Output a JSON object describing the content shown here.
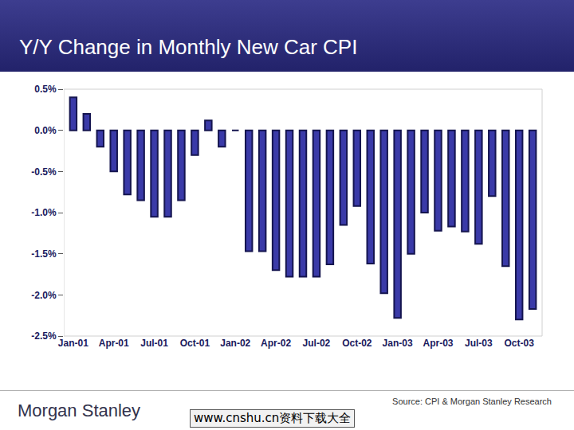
{
  "chart_data": {
    "type": "bar",
    "title": "Y/Y Change in Monthly New Car CPI",
    "categories": [
      "Jan-01",
      null,
      null,
      "Apr-01",
      null,
      null,
      "Jul-01",
      null,
      null,
      "Oct-01",
      null,
      null,
      "Jan-02",
      null,
      null,
      "Apr-02",
      null,
      null,
      "Jul-02",
      null,
      null,
      "Oct-02",
      null,
      null,
      "Jan-03",
      null,
      null,
      "Apr-03",
      null,
      null,
      "Jul-03",
      null,
      null,
      "Oct-03",
      null
    ],
    "values": [
      0.4,
      0.2,
      -0.2,
      -0.5,
      -0.78,
      -0.85,
      -1.05,
      -1.05,
      -0.85,
      -0.3,
      0.12,
      -0.2,
      0,
      -1.47,
      -1.47,
      -1.7,
      -1.78,
      -1.78,
      -1.78,
      -1.63,
      -1.15,
      -0.92,
      -1.62,
      -1.98,
      -2.28,
      -1.5,
      -1.0,
      -1.22,
      -1.17,
      -1.23,
      -1.38,
      -0.8,
      -1.65,
      -2.3,
      -2.17
    ],
    "color": "#3a3aa8",
    "ylim": [
      -2.5,
      0.5
    ],
    "yticks": [
      {
        "value": -2.5,
        "label": "-2.5%"
      },
      {
        "value": -2.0,
        "label": "-2.0%"
      },
      {
        "value": -1.5,
        "label": "-1.5%"
      },
      {
        "value": -1.0,
        "label": "-1.0%"
      },
      {
        "value": -0.5,
        "label": "-0.5%"
      },
      {
        "value": 0.0,
        "label": "0.0%"
      },
      {
        "value": 0.5,
        "label": "0.5%"
      }
    ],
    "grid": false
  },
  "footer": {
    "source": "Source: CPI & Morgan Stanley Research",
    "logo": "Morgan Stanley",
    "watermark": "www.cnshu.cn资料下载大全"
  }
}
